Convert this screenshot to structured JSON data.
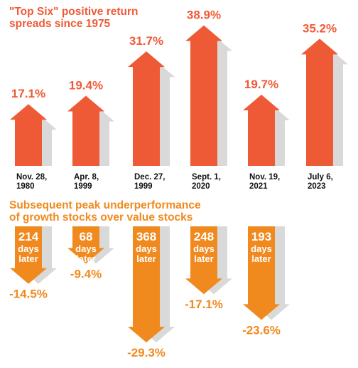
{
  "chart_data": [
    {
      "type": "bar",
      "title": "\"Top Six\" positive return spreads since 1975",
      "categories": [
        "Nov. 28, 1980",
        "Apr. 8, 1999",
        "Dec. 27, 1999",
        "Sept. 1, 2020",
        "Nov. 19, 2021",
        "July 6, 2023"
      ],
      "values": [
        17.1,
        19.4,
        31.7,
        38.9,
        19.7,
        35.2
      ],
      "value_labels": [
        "17.1%",
        "19.4%",
        "31.7%",
        "38.9%",
        "19.7%",
        "35.2%"
      ],
      "ylim": [
        0,
        40
      ],
      "grid": false,
      "unit": "%"
    },
    {
      "type": "bar",
      "title": "Subsequent peak underperformance of growth stocks over value stocks",
      "categories": [
        "Nov. 28, 1980",
        "Apr. 8, 1999",
        "Dec. 27, 1999",
        "Sept. 1, 2020",
        "Nov. 19, 2021"
      ],
      "values": [
        -14.5,
        -9.4,
        -29.3,
        -17.1,
        -23.6
      ],
      "value_labels": [
        "-14.5%",
        "-9.4%",
        "-29.3%",
        "-17.1%",
        "-23.6%"
      ],
      "days_later": [
        "214",
        "68",
        "368",
        "248",
        "193"
      ],
      "days_word": "days",
      "later_word": "later",
      "ylim": [
        -30,
        0
      ],
      "grid": false,
      "unit": "%"
    }
  ],
  "colors": {
    "positive": "#EF5A36",
    "negative": "#F08A1F",
    "shadow": "#D9D9D9",
    "date_text": "#111111"
  }
}
